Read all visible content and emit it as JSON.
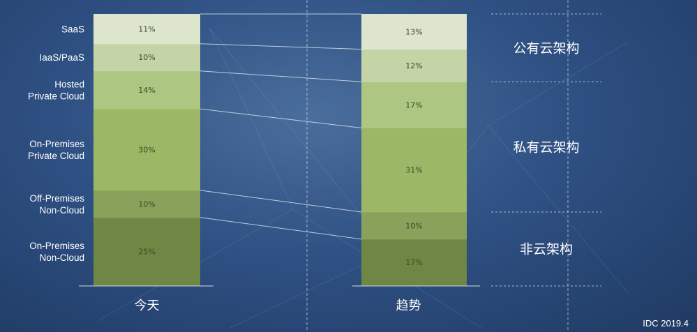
{
  "chart_data": {
    "type": "bar",
    "stacked": true,
    "orientation": "vertical",
    "categories": [
      "今天",
      "趋势"
    ],
    "series": [
      {
        "name": "On-Premises Non-Cloud",
        "values": [
          25,
          17
        ],
        "color": "#6f8645"
      },
      {
        "name": "Off-Premises Non-Cloud",
        "values": [
          10,
          10
        ],
        "color": "#89a15a"
      },
      {
        "name": "On-Premises Private Cloud",
        "values": [
          30,
          31
        ],
        "color": "#9cb765"
      },
      {
        "name": "Hosted Private Cloud",
        "values": [
          14,
          17
        ],
        "color": "#adc682"
      },
      {
        "name": "IaaS/PaaS",
        "values": [
          10,
          12
        ],
        "color": "#c5d4a7"
      },
      {
        "name": "SaaS",
        "values": [
          11,
          13
        ],
        "color": "#dde6cc"
      }
    ],
    "category_labels": {
      "SaaS": [
        "SaaS"
      ],
      "IaaS/PaaS": [
        "IaaS/PaaS"
      ],
      "Hosted Private Cloud": [
        "Hosted",
        "Private Cloud"
      ],
      "On-Premises Private Cloud": [
        "On-Premises",
        "Private Cloud"
      ],
      "Off-Premises Non-Cloud": [
        "Off-Premises",
        "Non-Cloud"
      ],
      "On-Premises Non-Cloud": [
        "On-Premises",
        "Non-Cloud"
      ]
    },
    "value_suffix": "%",
    "groups": [
      {
        "label": "公有云架构",
        "members": [
          "SaaS",
          "IaaS/PaaS"
        ]
      },
      {
        "label": "私有云架构",
        "members": [
          "Hosted Private Cloud",
          "On-Premises Private Cloud"
        ]
      },
      {
        "label": "非云架构",
        "members": [
          "Off-Premises Non-Cloud",
          "On-Premises Non-Cloud"
        ]
      }
    ],
    "source": "IDC 2019.4",
    "title": "",
    "xlabel": "",
    "ylabel": "",
    "grid": false,
    "legend": "none"
  }
}
